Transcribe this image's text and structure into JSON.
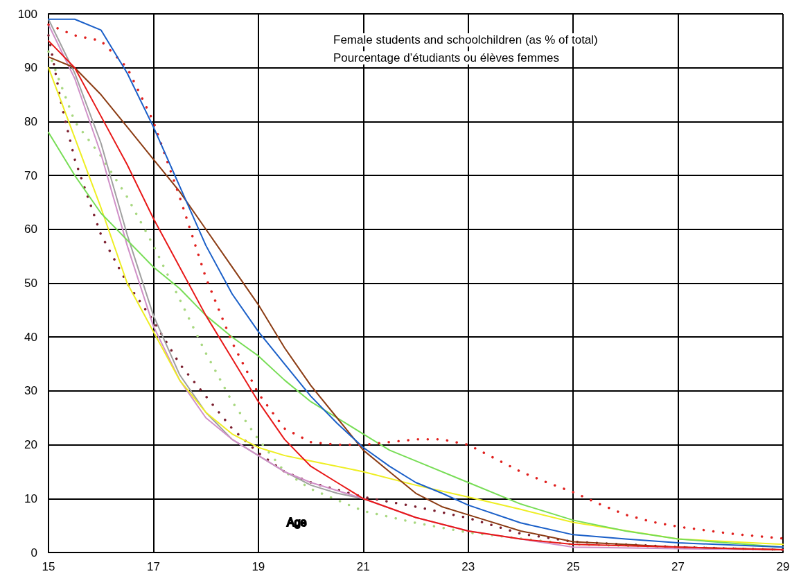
{
  "chart_data": {
    "type": "line",
    "title": "Female students and schoolchildren (as % of total)",
    "subtitle": "Pourcentage d’étudiants ou élèves femmes",
    "xlabel": "Age",
    "xlim": [
      15,
      29
    ],
    "xticks": [
      15,
      17,
      19,
      21,
      23,
      25,
      27,
      29
    ],
    "ylim": [
      0,
      100
    ],
    "yticks": [
      0,
      10,
      20,
      30,
      40,
      50,
      60,
      70,
      80,
      90,
      100
    ],
    "grid": true,
    "marker": "none",
    "series": [
      {
        "color": "#1a5fc8",
        "line_style": "solid",
        "x": [
          15,
          15.5,
          16,
          16.5,
          17,
          17.5,
          18,
          18.5,
          19,
          19.5,
          20,
          20.5,
          21,
          21.5,
          22,
          22.5,
          23,
          24,
          25,
          26,
          27,
          29
        ],
        "values": [
          99,
          99,
          97,
          89,
          79,
          68,
          57,
          48,
          41,
          35,
          29,
          24,
          19.5,
          16,
          13,
          11,
          8.8,
          5.5,
          3.3,
          2.5,
          1.8,
          1
        ]
      },
      {
        "color": "#e0201e",
        "line_style": "dotted",
        "x": [
          15,
          15.5,
          16,
          16.5,
          17,
          17.5,
          18,
          18.5,
          19,
          19.5,
          20,
          20.5,
          21,
          21.5,
          22,
          22.5,
          23,
          23.5,
          24,
          24.5,
          25,
          25.5,
          26,
          26.5,
          27,
          28,
          29
        ],
        "values": [
          98,
          96,
          95,
          90,
          80,
          66,
          51,
          39,
          29.5,
          23,
          20.5,
          20,
          20,
          20.5,
          21,
          21,
          20,
          17.5,
          15,
          13,
          11.2,
          9,
          7,
          5.7,
          4.8,
          3.5,
          2.6
        ]
      },
      {
        "color": "#e81818",
        "line_style": "solid",
        "x": [
          15,
          15.5,
          16,
          16.5,
          17,
          17.5,
          18,
          18.5,
          19,
          19.5,
          20,
          20.5,
          21,
          22,
          23,
          24,
          25,
          27,
          29
        ],
        "values": [
          95,
          90,
          81,
          72,
          62,
          53,
          44,
          36,
          28,
          21,
          16,
          13,
          10,
          6.5,
          4,
          2.5,
          1.5,
          1,
          0.5
        ]
      },
      {
        "color": "#8b3b12",
        "line_style": "solid",
        "x": [
          15,
          15.5,
          16,
          16.5,
          17,
          17.5,
          18,
          18.5,
          19,
          19.5,
          20,
          20.5,
          21,
          21.5,
          22,
          22.5,
          23,
          24,
          25,
          27,
          29
        ],
        "values": [
          92,
          90,
          85,
          79,
          73,
          67,
          60,
          53,
          46,
          38,
          31,
          25,
          19,
          15,
          11,
          8.5,
          7,
          4,
          2,
          1,
          0.5
        ]
      },
      {
        "color": "#77dd55",
        "line_style": "solid",
        "x": [
          15,
          15.5,
          16,
          16.5,
          17,
          17.5,
          18,
          18.5,
          19,
          19.5,
          20,
          20.5,
          21,
          21.5,
          22,
          23,
          24,
          25,
          26,
          27,
          29
        ],
        "values": [
          78,
          70,
          63,
          58,
          53,
          49,
          44,
          40,
          36.5,
          32,
          28,
          25,
          22,
          19,
          17,
          13,
          9,
          6,
          4,
          2.5,
          1
        ]
      },
      {
        "color": "#eeee22",
        "line_style": "solid",
        "x": [
          15,
          15.5,
          16,
          16.5,
          17,
          17.5,
          18,
          18.5,
          19,
          19.5,
          20,
          21,
          22,
          23,
          24,
          25,
          27,
          29
        ],
        "values": [
          90,
          77,
          64,
          50,
          41,
          32,
          26,
          22,
          19.5,
          18,
          17,
          15,
          12.5,
          10.3,
          8,
          5.6,
          2.5,
          1.5
        ]
      },
      {
        "color": "#d090c8",
        "line_style": "solid",
        "x": [
          15,
          15.5,
          16,
          16.5,
          17,
          17.5,
          18,
          18.5,
          19,
          19.5,
          20,
          21,
          22,
          23,
          25,
          27,
          29
        ],
        "values": [
          98,
          88,
          74,
          57,
          42,
          32,
          25,
          21,
          18,
          15,
          13,
          10,
          6.5,
          4,
          1,
          0.7,
          0.5
        ]
      },
      {
        "color": "#a0a0a0",
        "line_style": "solid",
        "x": [
          15,
          15.5,
          16,
          16.5,
          17,
          17.5,
          18,
          18.5,
          19,
          19.5,
          20,
          20.5,
          21
        ],
        "values": [
          99,
          89,
          76,
          59,
          44,
          33,
          26,
          21,
          18,
          15,
          12.5,
          11,
          10
        ]
      },
      {
        "color": "#7b1e2e",
        "line_style": "dotted",
        "x": [
          15,
          15.25,
          15.5,
          16,
          16.5,
          17,
          17.5,
          18,
          18.5,
          19,
          19.5,
          20,
          21,
          22,
          23,
          24,
          25,
          27,
          29
        ],
        "values": [
          96,
          83,
          73,
          59,
          50,
          43,
          35,
          29,
          23,
          18.5,
          15,
          13,
          10.3,
          8.5,
          6.4,
          3.5,
          2,
          1,
          0.5
        ]
      },
      {
        "color": "#a8d880",
        "line_style": "dotted",
        "x": [
          15,
          15.5,
          16,
          16.5,
          17,
          17.5,
          18,
          18.5,
          19,
          19.5,
          20,
          21,
          22,
          23,
          25,
          29
        ],
        "values": [
          93,
          80,
          73.6,
          66,
          57,
          47,
          37,
          28,
          21,
          15,
          11.8,
          7.7,
          5.5,
          3.7,
          1.5,
          0.5
        ]
      }
    ]
  }
}
